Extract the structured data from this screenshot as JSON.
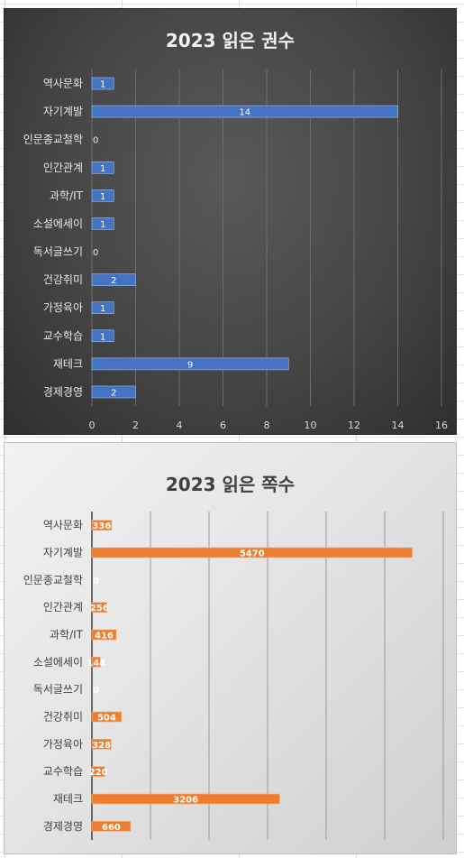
{
  "chart_data": [
    {
      "type": "bar",
      "orientation": "horizontal",
      "title": "2023 읽은 권수",
      "categories": [
        "역사문화",
        "자기계발",
        "인문종교철학",
        "인간관계",
        "과학/IT",
        "소설에세이",
        "독서글쓰기",
        "건강취미",
        "가정육아",
        "교수학습",
        "재테크",
        "경제경영"
      ],
      "values": [
        1,
        14,
        0,
        1,
        1,
        1,
        0,
        2,
        1,
        1,
        9,
        2
      ],
      "xlim": [
        0,
        16
      ],
      "xticks": [
        0,
        2,
        4,
        6,
        8,
        10,
        12,
        14,
        16
      ],
      "grid": true,
      "bar_color": "#4472c4",
      "background": "dark"
    },
    {
      "type": "bar",
      "orientation": "horizontal",
      "title": "2023 읽은 쪽수",
      "categories": [
        "역사문화",
        "자기계발",
        "인문종교철학",
        "인간관계",
        "과학/IT",
        "소설에세이",
        "독서글쓰기",
        "건강취미",
        "가정육아",
        "교수학습",
        "재테크",
        "경제경영"
      ],
      "values": [
        336,
        5470,
        0,
        256,
        416,
        144,
        0,
        504,
        328,
        220,
        3206,
        660
      ],
      "xlim": [
        0,
        6000
      ],
      "grid": true,
      "bar_color": "#ed7d31",
      "background": "light"
    }
  ]
}
